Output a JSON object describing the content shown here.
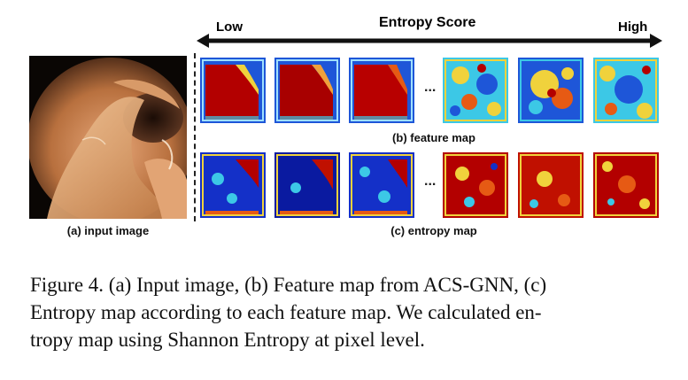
{
  "scale": {
    "low_label": "Low",
    "title": "Entropy Score",
    "high_label": "High"
  },
  "input_label": "(a) input image",
  "feature_label": "(b) feature map",
  "entropy_label": "(c) entropy map",
  "ellipsis": "...",
  "caption": {
    "line1": "Figure 4.  (a) Input image, (b) Feature map from ACS-GNN, (c)",
    "line2": "Entropy map according to each feature map.  We calculated en-",
    "line3": "tropy map using Shannon Entropy at pixel level."
  },
  "colors": {
    "red": "#b30000",
    "blue": "#1430c8",
    "cyan": "#3cc8e6",
    "yellow": "#f0d23c",
    "orange": "#e65a14"
  }
}
